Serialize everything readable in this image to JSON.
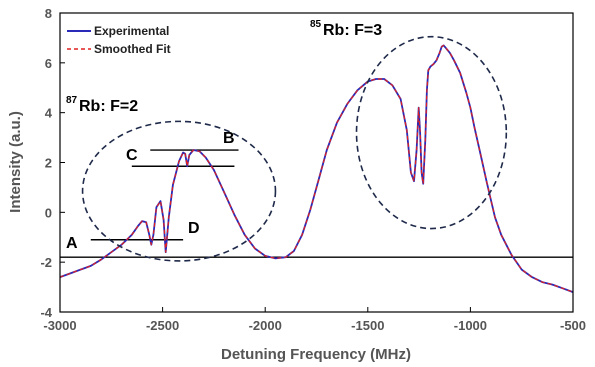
{
  "chart_data": {
    "type": "line",
    "title": "",
    "xlabel": "Detuning Frequency (MHz)",
    "ylabel": "Intensity (a.u.)",
    "xlim": [
      -3000,
      -500
    ],
    "ylim": [
      -4,
      8
    ],
    "xticks": [
      -3000,
      -2500,
      -2000,
      -1500,
      -1000,
      -500
    ],
    "yticks": [
      -4,
      -2,
      0,
      2,
      4,
      6,
      8
    ],
    "grid": false,
    "legend_position": "top-left",
    "series": [
      {
        "name": "Experimental",
        "color": "#2a2ab8",
        "style": "solid",
        "x": [
          -3000,
          -2950,
          -2900,
          -2850,
          -2800,
          -2750,
          -2700,
          -2650,
          -2620,
          -2600,
          -2580,
          -2565,
          -2555,
          -2545,
          -2530,
          -2510,
          -2495,
          -2485,
          -2470,
          -2450,
          -2420,
          -2400,
          -2390,
          -2380,
          -2370,
          -2350,
          -2320,
          -2290,
          -2250,
          -2200,
          -2150,
          -2100,
          -2050,
          -2000,
          -1950,
          -1900,
          -1860,
          -1820,
          -1780,
          -1740,
          -1700,
          -1650,
          -1600,
          -1550,
          -1500,
          -1460,
          -1420,
          -1380,
          -1340,
          -1310,
          -1290,
          -1275,
          -1262,
          -1252,
          -1245,
          -1238,
          -1230,
          -1220,
          -1212,
          -1205,
          -1195,
          -1180,
          -1165,
          -1150,
          -1140,
          -1130,
          -1120,
          -1100,
          -1080,
          -1050,
          -1020,
          -1000,
          -980,
          -950,
          -920,
          -900,
          -880,
          -850,
          -800,
          -750,
          -700,
          -650,
          -600,
          -550,
          -500
        ],
        "y": [
          -2.6,
          -2.45,
          -2.3,
          -2.15,
          -1.9,
          -1.6,
          -1.3,
          -0.9,
          -0.55,
          -0.35,
          -0.4,
          -0.9,
          -1.3,
          -0.9,
          0.2,
          0.45,
          -0.3,
          -1.6,
          -0.2,
          1.1,
          2.05,
          2.4,
          2.35,
          1.85,
          2.3,
          2.5,
          2.45,
          2.2,
          1.7,
          0.8,
          -0.1,
          -0.9,
          -1.45,
          -1.75,
          -1.85,
          -1.8,
          -1.55,
          -0.9,
          0.1,
          1.3,
          2.5,
          3.6,
          4.35,
          4.9,
          5.25,
          5.35,
          5.35,
          5.1,
          4.55,
          3.3,
          1.6,
          1.25,
          2.5,
          4.2,
          3.2,
          1.6,
          1.15,
          2.9,
          4.9,
          5.7,
          5.85,
          5.95,
          6.1,
          6.4,
          6.65,
          6.7,
          6.6,
          6.4,
          6.1,
          5.6,
          4.8,
          4.2,
          3.4,
          2.3,
          1.2,
          0.5,
          -0.2,
          -0.9,
          -1.7,
          -2.3,
          -2.6,
          -2.8,
          -2.9,
          -3.05,
          -3.2
        ]
      },
      {
        "name": "Smoothed Fit",
        "color": "#e02020",
        "style": "dashed",
        "x": [
          -3000,
          -2950,
          -2900,
          -2850,
          -2800,
          -2750,
          -2700,
          -2650,
          -2620,
          -2600,
          -2580,
          -2565,
          -2555,
          -2545,
          -2530,
          -2510,
          -2495,
          -2485,
          -2470,
          -2450,
          -2420,
          -2400,
          -2390,
          -2380,
          -2370,
          -2350,
          -2320,
          -2290,
          -2250,
          -2200,
          -2150,
          -2100,
          -2050,
          -2000,
          -1950,
          -1900,
          -1860,
          -1820,
          -1780,
          -1740,
          -1700,
          -1650,
          -1600,
          -1550,
          -1500,
          -1460,
          -1420,
          -1380,
          -1340,
          -1310,
          -1290,
          -1275,
          -1262,
          -1252,
          -1245,
          -1238,
          -1230,
          -1220,
          -1212,
          -1205,
          -1195,
          -1180,
          -1165,
          -1150,
          -1140,
          -1130,
          -1120,
          -1100,
          -1080,
          -1050,
          -1020,
          -1000,
          -980,
          -950,
          -920,
          -900,
          -880,
          -850,
          -800,
          -750,
          -700,
          -650,
          -600,
          -550,
          -500
        ],
        "y": [
          -2.6,
          -2.45,
          -2.3,
          -2.15,
          -1.9,
          -1.6,
          -1.3,
          -0.9,
          -0.55,
          -0.35,
          -0.4,
          -0.9,
          -1.3,
          -0.9,
          0.2,
          0.45,
          -0.3,
          -1.6,
          -0.2,
          1.1,
          2.05,
          2.4,
          2.35,
          1.85,
          2.3,
          2.5,
          2.45,
          2.2,
          1.7,
          0.8,
          -0.1,
          -0.9,
          -1.45,
          -1.75,
          -1.85,
          -1.8,
          -1.55,
          -0.9,
          0.1,
          1.3,
          2.5,
          3.6,
          4.35,
          4.9,
          5.25,
          5.35,
          5.35,
          5.1,
          4.55,
          3.3,
          1.6,
          1.25,
          2.5,
          4.2,
          3.2,
          1.6,
          1.15,
          2.9,
          4.9,
          5.7,
          5.85,
          5.95,
          6.1,
          6.4,
          6.65,
          6.7,
          6.6,
          6.4,
          6.1,
          5.6,
          4.8,
          4.2,
          3.4,
          2.3,
          1.2,
          0.5,
          -0.2,
          -0.9,
          -1.7,
          -2.3,
          -2.6,
          -2.8,
          -2.9,
          -3.05,
          -3.2
        ]
      }
    ],
    "reference_lines": [
      {
        "label": "",
        "y": -1.8,
        "x": [
          -3000,
          -500
        ]
      },
      {
        "label": "A",
        "y": -1.1,
        "x": [
          -2850,
          -2400
        ]
      },
      {
        "label": "D",
        "y": -1.1,
        "x": [
          -2850,
          -2400
        ]
      },
      {
        "label": "C",
        "y": 1.85,
        "x": [
          -2650,
          -2150
        ]
      },
      {
        "label": "B",
        "y": 2.5,
        "x": [
          -2560,
          -2130
        ]
      }
    ],
    "regions": [
      {
        "label_prefix": "87",
        "label_main": "Rb: F=2",
        "cx": -2420,
        "cy": 0.85,
        "rx": 470,
        "ry": 2.8
      },
      {
        "label_prefix": "85",
        "label_main": "Rb: F=3",
        "cx": -1190,
        "cy": 3.2,
        "rx": 365,
        "ry": 3.85
      }
    ]
  }
}
